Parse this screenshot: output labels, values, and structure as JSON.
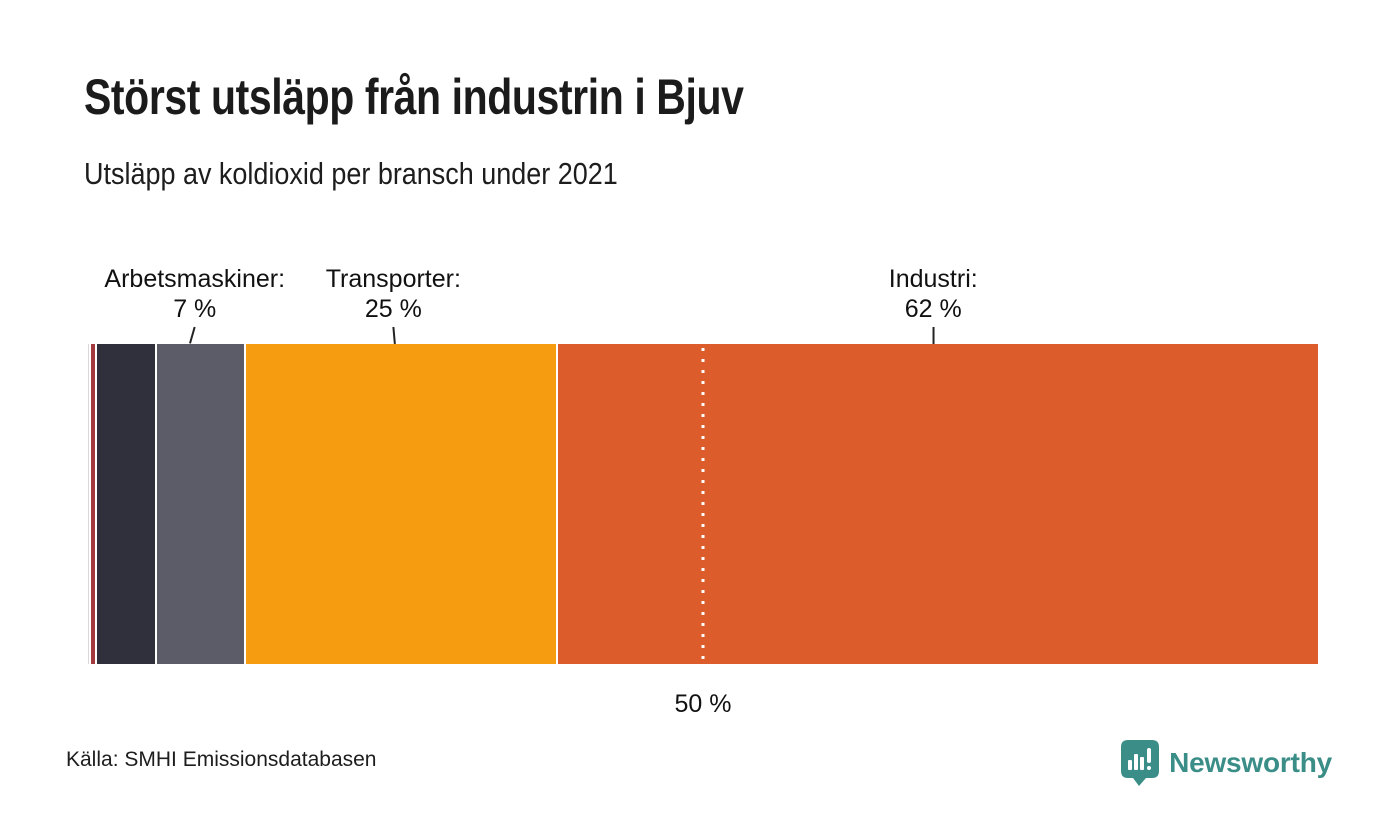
{
  "title": "Störst utsläpp från industrin i Bjuv",
  "subtitle": "Utsläpp av koldioxid per bransch under 2021",
  "source": "Källa: SMHI Emissionsdatabasen",
  "brand": {
    "name": "Newsworthy",
    "color": "#3A8E87"
  },
  "chart_data": {
    "type": "bar",
    "orientation": "horizontal-stacked",
    "unit": "%",
    "title": "Utsläpp av koldioxid per bransch under 2021",
    "segments": [
      {
        "label": "",
        "value": 0.1,
        "color": "#DCD7DD"
      },
      {
        "label": "",
        "value": 0.3,
        "color": "#A33A3F"
      },
      {
        "label": "",
        "value": 4.7,
        "color": "#302F3C"
      },
      {
        "label": "Arbetsmaskiner",
        "value": 7,
        "color": "#5C5B68",
        "annotation": "Arbetsmaskiner:",
        "value_label": "7 %"
      },
      {
        "label": "Transporter",
        "value": 25,
        "color": "#F59C11",
        "annotation": "Transporter:",
        "value_label": "25 %"
      },
      {
        "label": "Industri",
        "value": 62,
        "color": "#DC5C2B",
        "annotation": "Industri:",
        "value_label": "62 %"
      }
    ],
    "reference_line": {
      "value": 50,
      "label": "50 %"
    },
    "xlim": [
      0,
      100
    ],
    "legend": "none",
    "grid": "off"
  }
}
